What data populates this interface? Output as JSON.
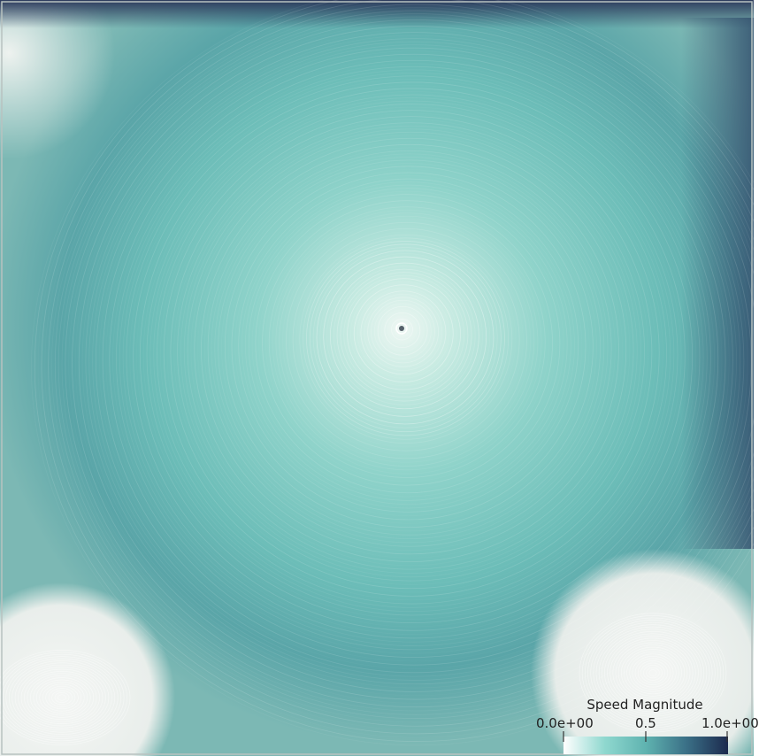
{
  "colorbar": {
    "title": "Speed Magnitude",
    "ticks": [
      "0.0e+00",
      "0.5",
      "1.0e+00"
    ],
    "range": [
      0.0,
      1.0
    ],
    "colors": [
      "#ffffff",
      "#8fd8cf",
      "#5fb3b0",
      "#3a6f86",
      "#1c2a4e"
    ]
  },
  "palette": {
    "low": "#eef2ef",
    "mid": "#7cc8c0",
    "high": "#2c3a5c",
    "streak": "#ffffff"
  }
}
